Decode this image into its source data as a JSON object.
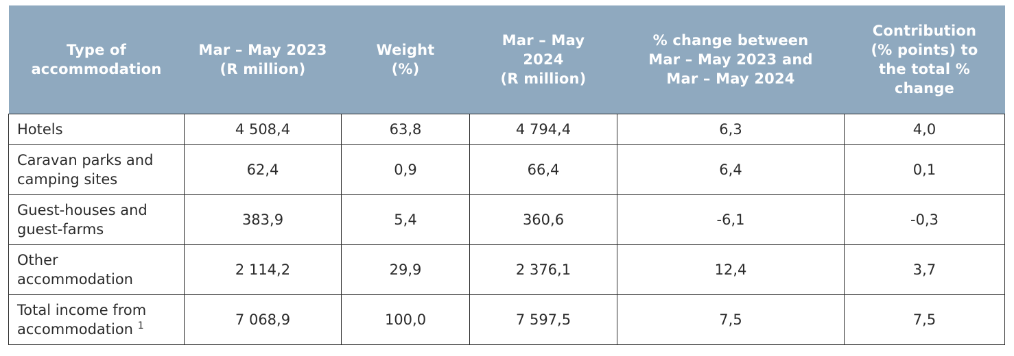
{
  "table": {
    "headers": [
      [
        "Type of",
        "accommodation"
      ],
      [
        "Mar – May  2023",
        "(R million)"
      ],
      [
        "Weight",
        "(%)"
      ],
      [
        "Mar – May",
        "2024",
        "(R million)"
      ],
      [
        "% change between",
        "Mar – May  2023  and",
        "Mar – May  2024"
      ],
      [
        "Contribution",
        "(% points) to",
        "the total %",
        "change"
      ]
    ],
    "rows": [
      {
        "label": [
          "Hotels"
        ],
        "values": [
          "4 508,4",
          "63,8",
          "4 794,4",
          "6,3",
          "4,0"
        ]
      },
      {
        "label": [
          "Caravan parks and",
          "camping sites"
        ],
        "values": [
          "62,4",
          "0,9",
          "66,4",
          "6,4",
          "0,1"
        ]
      },
      {
        "label": [
          "Guest-houses and",
          "guest-farms"
        ],
        "values": [
          "383,9",
          "5,4",
          "360,6",
          "-6,1",
          "-0,3"
        ]
      },
      {
        "label": [
          "Other",
          "accommodation"
        ],
        "values": [
          "2 114,2",
          "29,9",
          "2 376,1",
          "12,4",
          "3,7"
        ]
      },
      {
        "label": [
          "Total income from",
          "accommodation"
        ],
        "footnote": "1",
        "values": [
          "7 068,9",
          "100,0",
          "7 597,5",
          "7,5",
          "7,5"
        ]
      }
    ]
  }
}
